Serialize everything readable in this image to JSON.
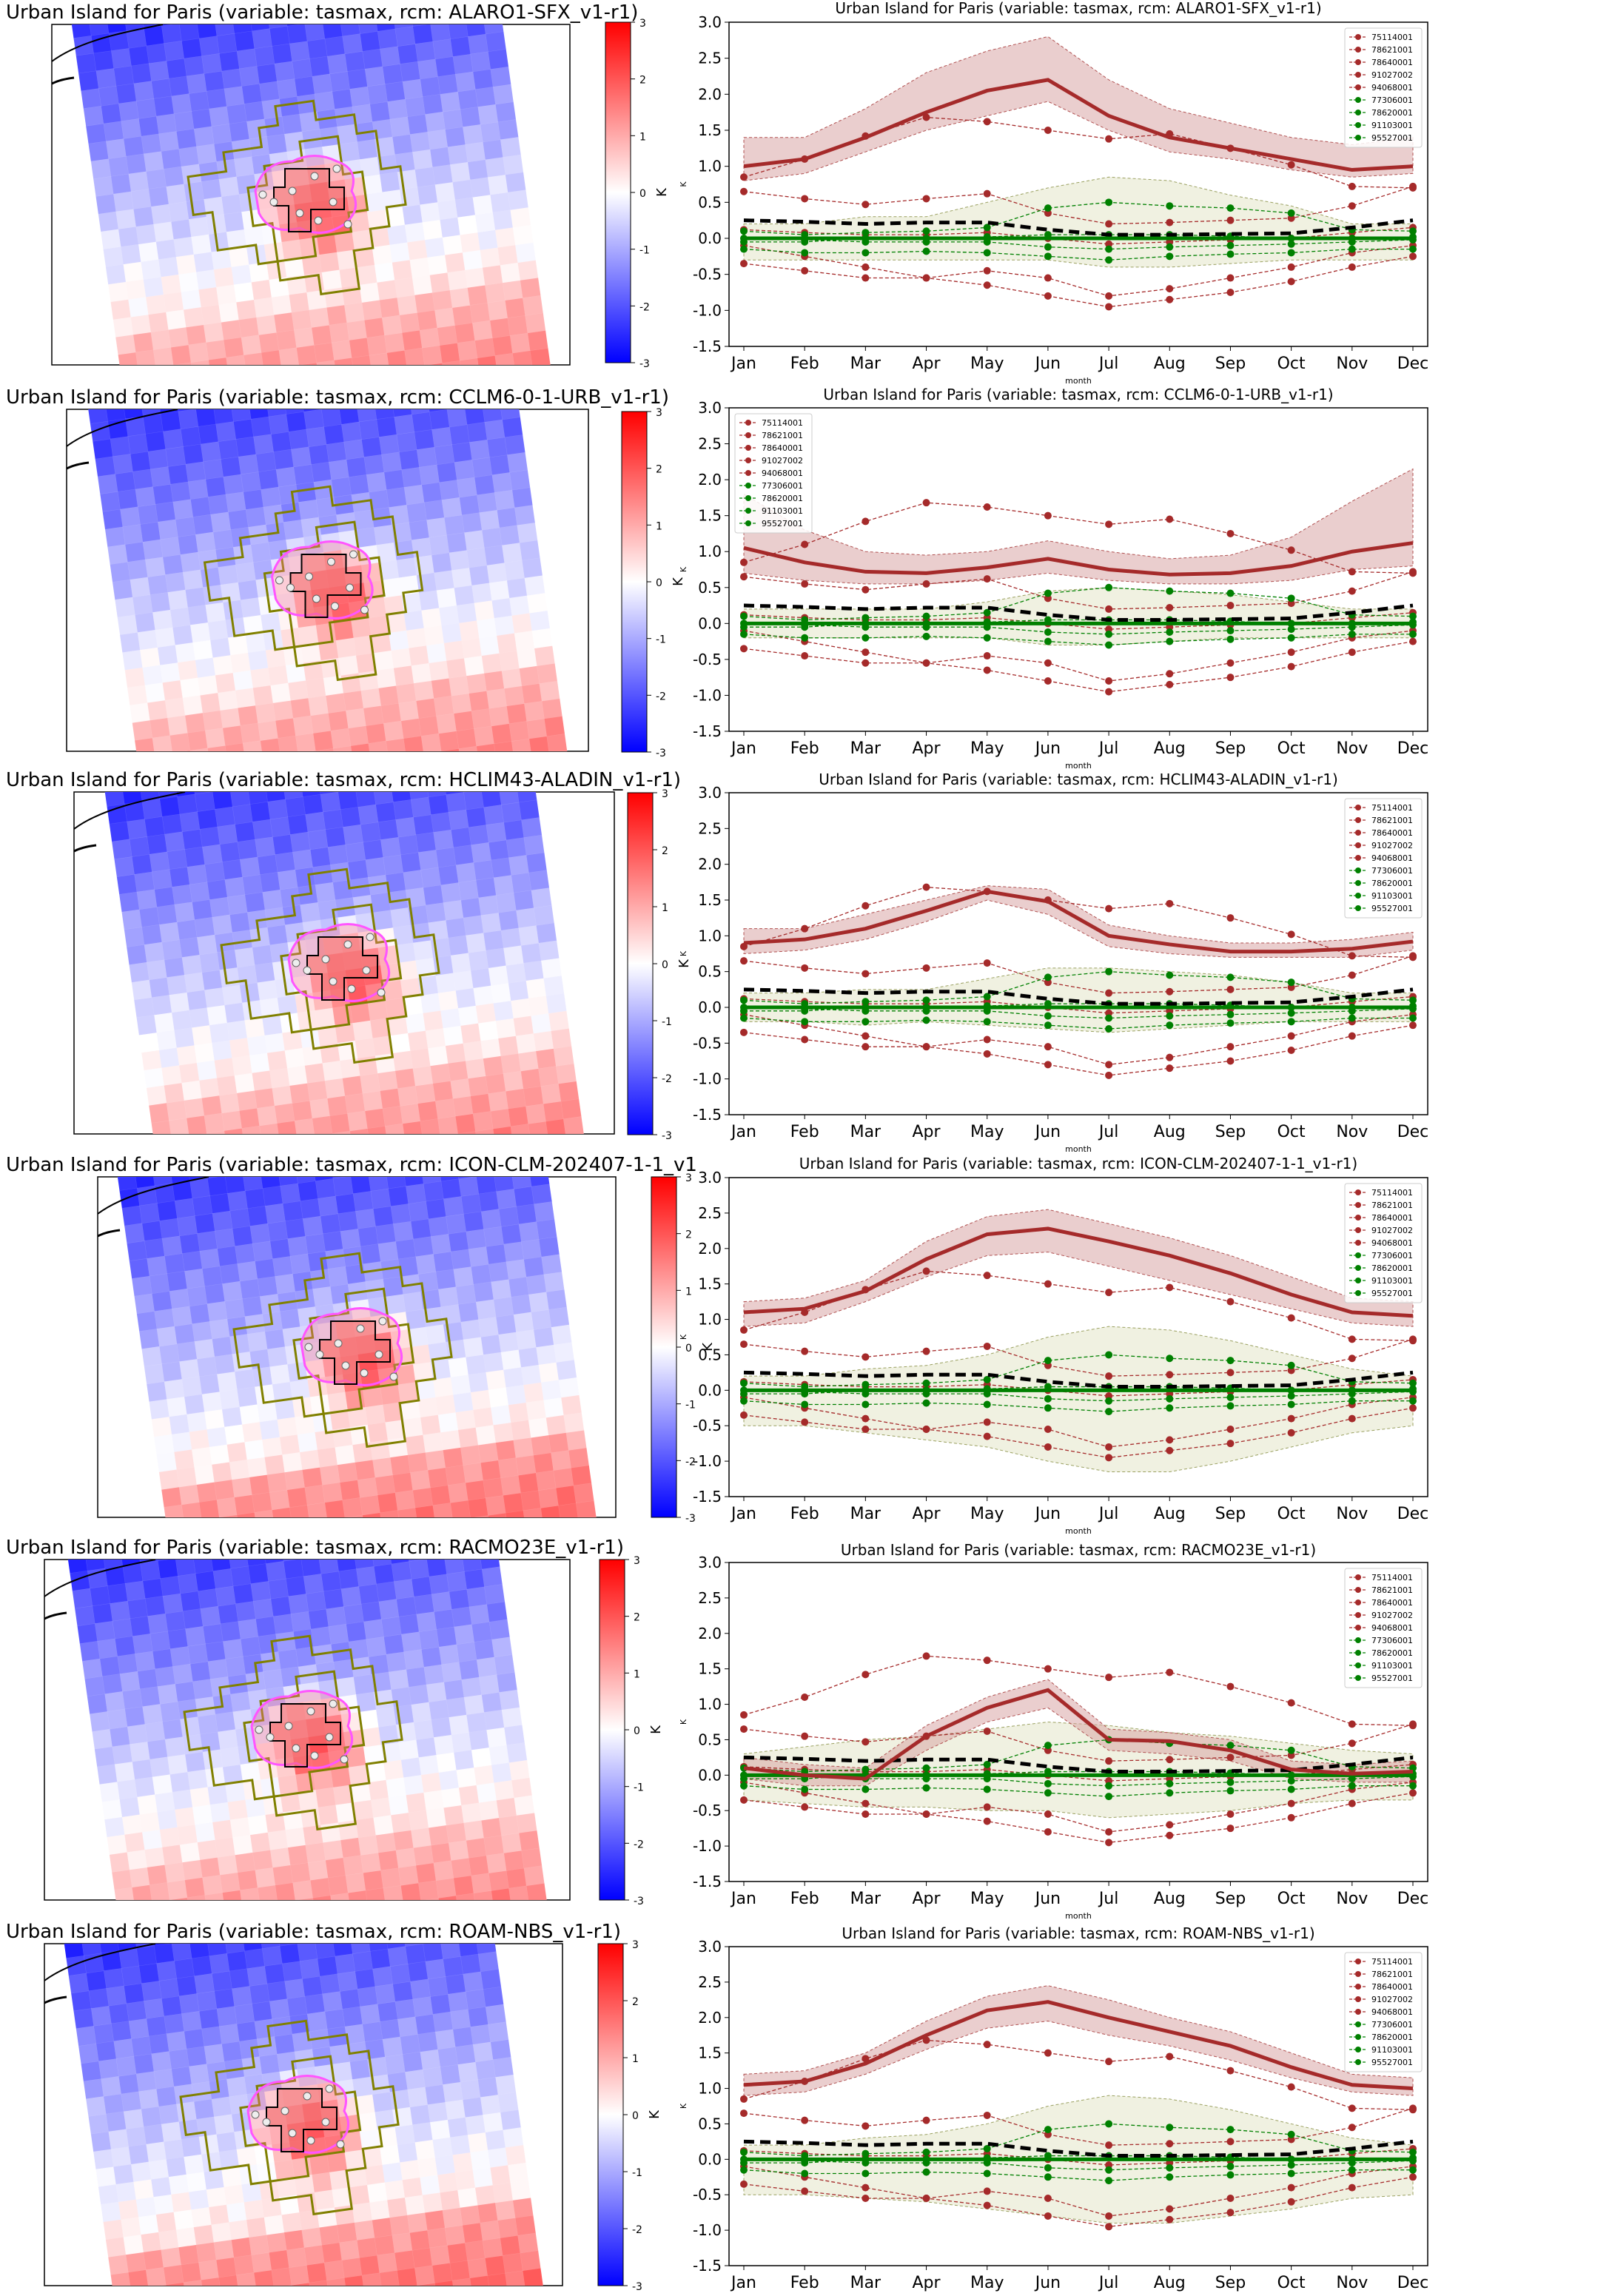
{
  "figure": {
    "month_labels": [
      "Jan",
      "Feb",
      "Mar",
      "Apr",
      "May",
      "Jun",
      "Jul",
      "Aug",
      "Sep",
      "Oct",
      "Nov",
      "Dec"
    ],
    "x_axis_label": "month",
    "y_axis_label": "K",
    "y_ticks": [
      -1.5,
      -1.0,
      -0.5,
      0.0,
      0.5,
      1.0,
      1.5,
      2.0,
      2.5,
      3.0
    ],
    "colorbar_ticks": [
      -3,
      -2,
      -1,
      0,
      1,
      2,
      3
    ],
    "colorbar_label": "K",
    "legend_entries": [
      {
        "label": "75114001",
        "color": "#a52a2a"
      },
      {
        "label": "78621001",
        "color": "#a52a2a"
      },
      {
        "label": "78640001",
        "color": "#a52a2a"
      },
      {
        "label": "91027002",
        "color": "#a52a2a"
      },
      {
        "label": "94068001",
        "color": "#a52a2a"
      },
      {
        "label": "77306001",
        "color": "#008000"
      },
      {
        "label": "78620001",
        "color": "#008000"
      },
      {
        "label": "91103001",
        "color": "#008000"
      },
      {
        "label": "95527001",
        "color": "#008000"
      }
    ],
    "colors": {
      "urban": "#a52a2a",
      "rural": "#008000",
      "mean": "#000000",
      "urban_band": "#d9a6a6",
      "rural_band": "#e4e6c8",
      "urban_outline": "#808000",
      "city_outline": "#ff55ff"
    }
  },
  "panels": [
    {
      "map_title": "Urban Island for Paris (variable: tasmax, rcm: ALARO1-SFX_v1-r1)",
      "chart_title": "Urban Island for Paris (variable: tasmax, rcm: ALARO1-SFX_v1-r1)"
    },
    {
      "map_title": "Urban Island for Paris (variable: tasmax, rcm: CCLM6-0-1-URB_v1-r1)",
      "chart_title": "Urban Island for Paris (variable: tasmax, rcm: CCLM6-0-1-URB_v1-r1)"
    },
    {
      "map_title": "Urban Island for Paris (variable: tasmax, rcm: HCLIM43-ALADIN_v1-r1)",
      "chart_title": "Urban Island for Paris (variable: tasmax, rcm: HCLIM43-ALADIN_v1-r1)"
    },
    {
      "map_title": "Urban Island for Paris (variable: tasmax, rcm: ICON-CLM-202407-1-1_v1",
      "chart_title": "Urban Island for Paris (variable: tasmax, rcm: ICON-CLM-202407-1-1_v1-r1)"
    },
    {
      "map_title": "Urban Island for Paris (variable: tasmax, rcm: RACMO23E_v1-r1)",
      "chart_title": "Urban Island for Paris (variable: tasmax, rcm: RACMO23E_v1-r1)"
    },
    {
      "map_title": "Urban Island for Paris (variable: tasmax, rcm: ROAM-NBS_v1-r1)",
      "chart_title": "Urban Island for Paris (variable: tasmax, rcm: ROAM-NBS_v1-r1)"
    }
  ],
  "chart_data": [
    {
      "type": "line",
      "ylim": [
        -1.5,
        3.0
      ],
      "model_urban_mean": [
        1.0,
        1.1,
        1.4,
        1.75,
        2.05,
        2.2,
        1.7,
        1.4,
        1.25,
        1.1,
        0.95,
        1.0
      ],
      "model_urban_band_low": [
        0.8,
        0.9,
        1.2,
        1.5,
        1.7,
        1.9,
        1.5,
        1.2,
        1.1,
        0.95,
        0.85,
        0.9
      ],
      "model_urban_band_high": [
        1.4,
        1.4,
        1.8,
        2.3,
        2.6,
        2.8,
        2.2,
        1.8,
        1.6,
        1.4,
        1.3,
        1.4
      ],
      "model_rural_mean": [
        0.0,
        0.0,
        0.0,
        0.0,
        0.0,
        0.0,
        0.0,
        0.0,
        0.0,
        0.0,
        0.0,
        0.0
      ],
      "model_rural_band_low": [
        -0.3,
        -0.3,
        -0.3,
        -0.3,
        -0.3,
        -0.3,
        -0.4,
        -0.4,
        -0.35,
        -0.3,
        -0.3,
        -0.3
      ],
      "model_rural_band_high": [
        0.2,
        0.2,
        0.3,
        0.3,
        0.5,
        0.7,
        0.85,
        0.8,
        0.6,
        0.45,
        0.2,
        0.2
      ],
      "obs_mean": [
        0.25,
        0.23,
        0.2,
        0.22,
        0.22,
        0.12,
        0.05,
        0.05,
        0.06,
        0.07,
        0.15,
        0.25
      ]
    },
    {
      "type": "line",
      "ylim": [
        -1.5,
        3.0
      ],
      "model_urban_mean": [
        1.05,
        0.85,
        0.72,
        0.7,
        0.78,
        0.9,
        0.75,
        0.68,
        0.7,
        0.8,
        1.0,
        1.12
      ],
      "model_urban_band_low": [
        0.7,
        0.6,
        0.55,
        0.55,
        0.6,
        0.7,
        0.6,
        0.55,
        0.55,
        0.6,
        0.75,
        0.8
      ],
      "model_urban_band_high": [
        1.8,
        1.3,
        1.0,
        0.95,
        1.0,
        1.15,
        1.0,
        0.9,
        0.95,
        1.2,
        1.7,
        2.15
      ],
      "model_rural_mean": [
        0.0,
        0.0,
        0.0,
        0.0,
        0.0,
        0.0,
        0.0,
        0.0,
        0.0,
        0.0,
        0.0,
        0.0
      ],
      "model_rural_band_low": [
        -0.2,
        -0.2,
        -0.2,
        -0.2,
        -0.2,
        -0.3,
        -0.3,
        -0.25,
        -0.2,
        -0.2,
        -0.2,
        -0.2
      ],
      "model_rural_band_high": [
        0.2,
        0.2,
        0.2,
        0.2,
        0.3,
        0.45,
        0.5,
        0.45,
        0.4,
        0.3,
        0.2,
        0.2
      ],
      "obs_mean": [
        0.25,
        0.23,
        0.2,
        0.22,
        0.22,
        0.12,
        0.05,
        0.05,
        0.06,
        0.07,
        0.15,
        0.25
      ]
    },
    {
      "type": "line",
      "ylim": [
        -1.5,
        3.0
      ],
      "model_urban_mean": [
        0.9,
        0.95,
        1.1,
        1.35,
        1.62,
        1.48,
        1.0,
        0.88,
        0.78,
        0.78,
        0.82,
        0.92
      ],
      "model_urban_band_low": [
        0.75,
        0.8,
        0.95,
        1.2,
        1.5,
        1.3,
        0.85,
        0.75,
        0.7,
        0.7,
        0.7,
        0.8
      ],
      "model_urban_band_high": [
        1.1,
        1.1,
        1.3,
        1.5,
        1.7,
        1.65,
        1.15,
        1.0,
        0.9,
        0.9,
        0.95,
        1.05
      ],
      "model_rural_mean": [
        0.0,
        0.0,
        0.0,
        0.0,
        0.0,
        0.0,
        0.0,
        0.0,
        0.0,
        0.0,
        0.0,
        0.0
      ],
      "model_rural_band_low": [
        -0.2,
        -0.2,
        -0.25,
        -0.2,
        -0.25,
        -0.3,
        -0.35,
        -0.3,
        -0.25,
        -0.2,
        -0.2,
        -0.2
      ],
      "model_rural_band_high": [
        0.2,
        0.2,
        0.25,
        0.25,
        0.4,
        0.55,
        0.55,
        0.5,
        0.45,
        0.35,
        0.2,
        0.2
      ],
      "obs_mean": [
        0.25,
        0.23,
        0.2,
        0.22,
        0.22,
        0.12,
        0.05,
        0.05,
        0.06,
        0.07,
        0.15,
        0.25
      ]
    },
    {
      "type": "line",
      "ylim": [
        -1.5,
        3.0
      ],
      "model_urban_mean": [
        1.1,
        1.15,
        1.4,
        1.85,
        2.2,
        2.28,
        2.1,
        1.9,
        1.65,
        1.35,
        1.1,
        1.05
      ],
      "model_urban_band_low": [
        0.9,
        0.95,
        1.25,
        1.6,
        1.9,
        1.95,
        1.75,
        1.55,
        1.35,
        1.15,
        0.95,
        0.9
      ],
      "model_urban_band_high": [
        1.25,
        1.3,
        1.55,
        2.1,
        2.45,
        2.55,
        2.35,
        2.15,
        1.9,
        1.6,
        1.3,
        1.25
      ],
      "model_rural_mean": [
        0.0,
        0.0,
        0.0,
        0.0,
        0.0,
        0.0,
        0.0,
        0.0,
        0.0,
        0.0,
        0.0,
        0.0
      ],
      "model_rural_band_low": [
        -0.5,
        -0.5,
        -0.6,
        -0.7,
        -0.8,
        -1.0,
        -1.15,
        -1.15,
        -1.0,
        -0.8,
        -0.6,
        -0.5
      ],
      "model_rural_band_high": [
        0.2,
        0.2,
        0.3,
        0.35,
        0.5,
        0.75,
        0.9,
        0.85,
        0.7,
        0.5,
        0.3,
        0.2
      ],
      "obs_mean": [
        0.25,
        0.23,
        0.2,
        0.22,
        0.22,
        0.12,
        0.05,
        0.05,
        0.06,
        0.07,
        0.15,
        0.25
      ]
    },
    {
      "type": "line",
      "ylim": [
        -1.5,
        3.0
      ],
      "model_urban_mean": [
        0.1,
        0.0,
        -0.05,
        0.55,
        0.95,
        1.2,
        0.5,
        0.48,
        0.35,
        0.08,
        0.02,
        0.05
      ],
      "model_urban_band_low": [
        -0.05,
        -0.15,
        -0.15,
        0.35,
        0.75,
        0.95,
        0.35,
        0.3,
        0.2,
        -0.05,
        -0.1,
        -0.1
      ],
      "model_urban_band_high": [
        0.25,
        0.15,
        0.1,
        0.7,
        1.1,
        1.35,
        0.65,
        0.6,
        0.5,
        0.2,
        0.15,
        0.2
      ],
      "model_rural_mean": [
        0.0,
        0.0,
        0.0,
        0.0,
        0.0,
        0.0,
        0.0,
        0.0,
        0.0,
        0.0,
        0.0,
        0.0
      ],
      "model_rural_band_low": [
        -0.35,
        -0.4,
        -0.45,
        -0.45,
        -0.5,
        -0.5,
        -0.6,
        -0.55,
        -0.5,
        -0.4,
        -0.35,
        -0.35
      ],
      "model_rural_band_high": [
        0.3,
        0.4,
        0.5,
        0.55,
        0.65,
        0.75,
        0.7,
        0.6,
        0.55,
        0.45,
        0.35,
        0.3
      ],
      "obs_mean": [
        0.25,
        0.23,
        0.2,
        0.22,
        0.22,
        0.12,
        0.05,
        0.05,
        0.06,
        0.07,
        0.15,
        0.25
      ]
    },
    {
      "type": "line",
      "ylim": [
        -1.5,
        3.0
      ],
      "model_urban_mean": [
        1.05,
        1.1,
        1.35,
        1.75,
        2.1,
        2.22,
        2.0,
        1.8,
        1.6,
        1.3,
        1.05,
        1.0
      ],
      "model_urban_band_low": [
        0.9,
        0.95,
        1.2,
        1.55,
        1.85,
        1.95,
        1.75,
        1.6,
        1.4,
        1.15,
        0.95,
        0.9
      ],
      "model_urban_band_high": [
        1.2,
        1.25,
        1.5,
        1.95,
        2.3,
        2.45,
        2.25,
        2.0,
        1.8,
        1.5,
        1.2,
        1.15
      ],
      "model_rural_mean": [
        0.0,
        0.0,
        0.0,
        0.0,
        0.0,
        0.0,
        0.0,
        0.0,
        0.0,
        0.0,
        0.0,
        0.0
      ],
      "model_rural_band_low": [
        -0.5,
        -0.5,
        -0.55,
        -0.6,
        -0.7,
        -0.8,
        -0.9,
        -0.9,
        -0.8,
        -0.7,
        -0.55,
        -0.5
      ],
      "model_rural_band_high": [
        0.2,
        0.2,
        0.3,
        0.35,
        0.5,
        0.75,
        0.9,
        0.85,
        0.7,
        0.5,
        0.3,
        0.2
      ],
      "obs_mean": [
        0.25,
        0.23,
        0.2,
        0.22,
        0.22,
        0.12,
        0.05,
        0.05,
        0.06,
        0.07,
        0.15,
        0.25
      ]
    }
  ],
  "station_observations": {
    "75114001": [
      0.85,
      1.1,
      1.42,
      1.68,
      1.62,
      1.5,
      1.38,
      1.45,
      1.25,
      1.02,
      0.72,
      0.7
    ],
    "78621001": [
      0.65,
      0.55,
      0.47,
      0.55,
      0.62,
      0.35,
      0.2,
      0.22,
      0.25,
      0.28,
      0.45,
      0.72
    ],
    "78640001": [
      0.12,
      0.08,
      0.05,
      0.05,
      0.08,
      0.0,
      -0.08,
      -0.05,
      -0.02,
      0.0,
      0.08,
      0.15
    ],
    "91027002": [
      -0.35,
      -0.45,
      -0.55,
      -0.55,
      -0.45,
      -0.55,
      -0.8,
      -0.7,
      -0.55,
      -0.4,
      -0.2,
      -0.1
    ],
    "94068001": [
      -0.1,
      -0.25,
      -0.4,
      -0.55,
      -0.65,
      -0.8,
      -0.95,
      -0.85,
      -0.75,
      -0.6,
      -0.4,
      -0.25
    ],
    "77306001": [
      0.1,
      0.05,
      0.08,
      0.1,
      0.15,
      0.42,
      0.5,
      0.45,
      0.42,
      0.35,
      0.12,
      0.1
    ],
    "78620001": [
      -0.05,
      -0.05,
      0.0,
      0.0,
      0.02,
      0.05,
      0.05,
      0.05,
      0.03,
      0.0,
      0.0,
      0.02
    ],
    "91103001": [
      -0.15,
      -0.2,
      -0.2,
      -0.18,
      -0.2,
      -0.25,
      -0.3,
      -0.25,
      -0.22,
      -0.2,
      -0.15,
      -0.15
    ],
    "95527001": [
      0.0,
      -0.02,
      -0.05,
      -0.05,
      -0.05,
      -0.12,
      -0.15,
      -0.12,
      -0.1,
      -0.08,
      -0.05,
      -0.02
    ]
  }
}
